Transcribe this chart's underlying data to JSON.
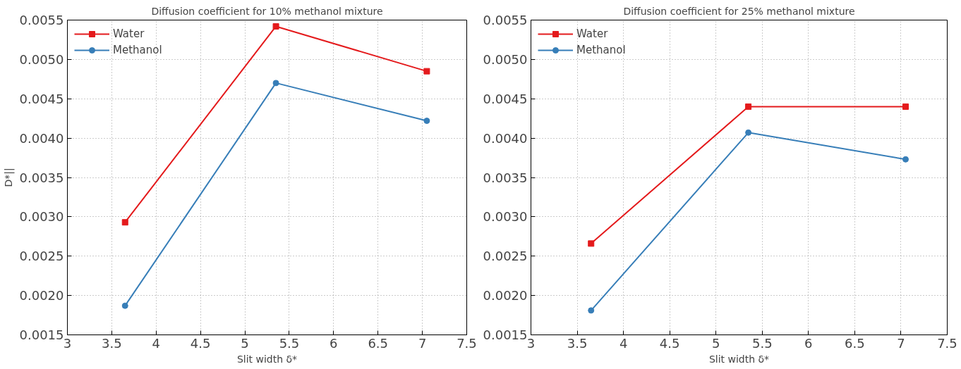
{
  "chart_data": [
    {
      "type": "line",
      "title": "Diffusion coefficient for 10% methanol mixture",
      "xlabel": "Slit width δ*",
      "ylabel": "D*||",
      "x": [
        3.65,
        5.35,
        7.05
      ],
      "series": [
        {
          "name": "Water",
          "color": "#e41a1c",
          "marker": "square",
          "values": [
            0.00293,
            0.00542,
            0.00485
          ]
        },
        {
          "name": "Methanol",
          "color": "#377eb8",
          "marker": "circle",
          "values": [
            0.00187,
            0.0047,
            0.00422
          ]
        }
      ],
      "xlim": [
        3,
        7.5
      ],
      "xticks": [
        3,
        3.5,
        4,
        4.5,
        5,
        5.5,
        6,
        6.5,
        7,
        7.5
      ],
      "ylim": [
        0.0015,
        0.0055
      ],
      "yticks": [
        {
          "value": 0.0015,
          "label": "0.0015"
        },
        {
          "value": 0.002,
          "label": "0.0020"
        },
        {
          "value": 0.0025,
          "label": "0.0025"
        },
        {
          "value": 0.003,
          "label": "0.0030"
        },
        {
          "value": 0.0035,
          "label": "0.0035"
        },
        {
          "value": 0.004,
          "label": "0.0040"
        },
        {
          "value": 0.0045,
          "label": "0.0045"
        },
        {
          "value": 0.005,
          "label": "0.0050"
        },
        {
          "value": 0.0055,
          "label": "0.0055"
        }
      ],
      "grid": true,
      "legend": "top left"
    },
    {
      "type": "line",
      "title": "Diffusion coefficient for 25% methanol mixture",
      "xlabel": "Slit width δ*",
      "x": [
        3.65,
        5.35,
        7.05
      ],
      "series": [
        {
          "name": "Water",
          "color": "#e41a1c",
          "marker": "square",
          "values": [
            0.00266,
            0.0044,
            0.0044
          ]
        },
        {
          "name": "Methanol",
          "color": "#377eb8",
          "marker": "circle",
          "values": [
            0.00181,
            0.00407,
            0.00373
          ]
        }
      ],
      "xlim": [
        3,
        7.5
      ],
      "xticks": [
        3,
        3.5,
        4,
        4.5,
        5,
        5.5,
        6,
        6.5,
        7,
        7.5
      ],
      "ylim": [
        0.0015,
        0.0055
      ],
      "yticks": [
        {
          "value": 0.0015,
          "label": "0.0015"
        },
        {
          "value": 0.002,
          "label": "0.0020"
        },
        {
          "value": 0.0025,
          "label": "0.0025"
        },
        {
          "value": 0.003,
          "label": "0.0030"
        },
        {
          "value": 0.0035,
          "label": "0.0035"
        },
        {
          "value": 0.004,
          "label": "0.0040"
        },
        {
          "value": 0.0045,
          "label": "0.0045"
        },
        {
          "value": 0.005,
          "label": "0.0050"
        },
        {
          "value": 0.0055,
          "label": "0.0055"
        }
      ],
      "grid": true,
      "legend": "top left"
    }
  ]
}
